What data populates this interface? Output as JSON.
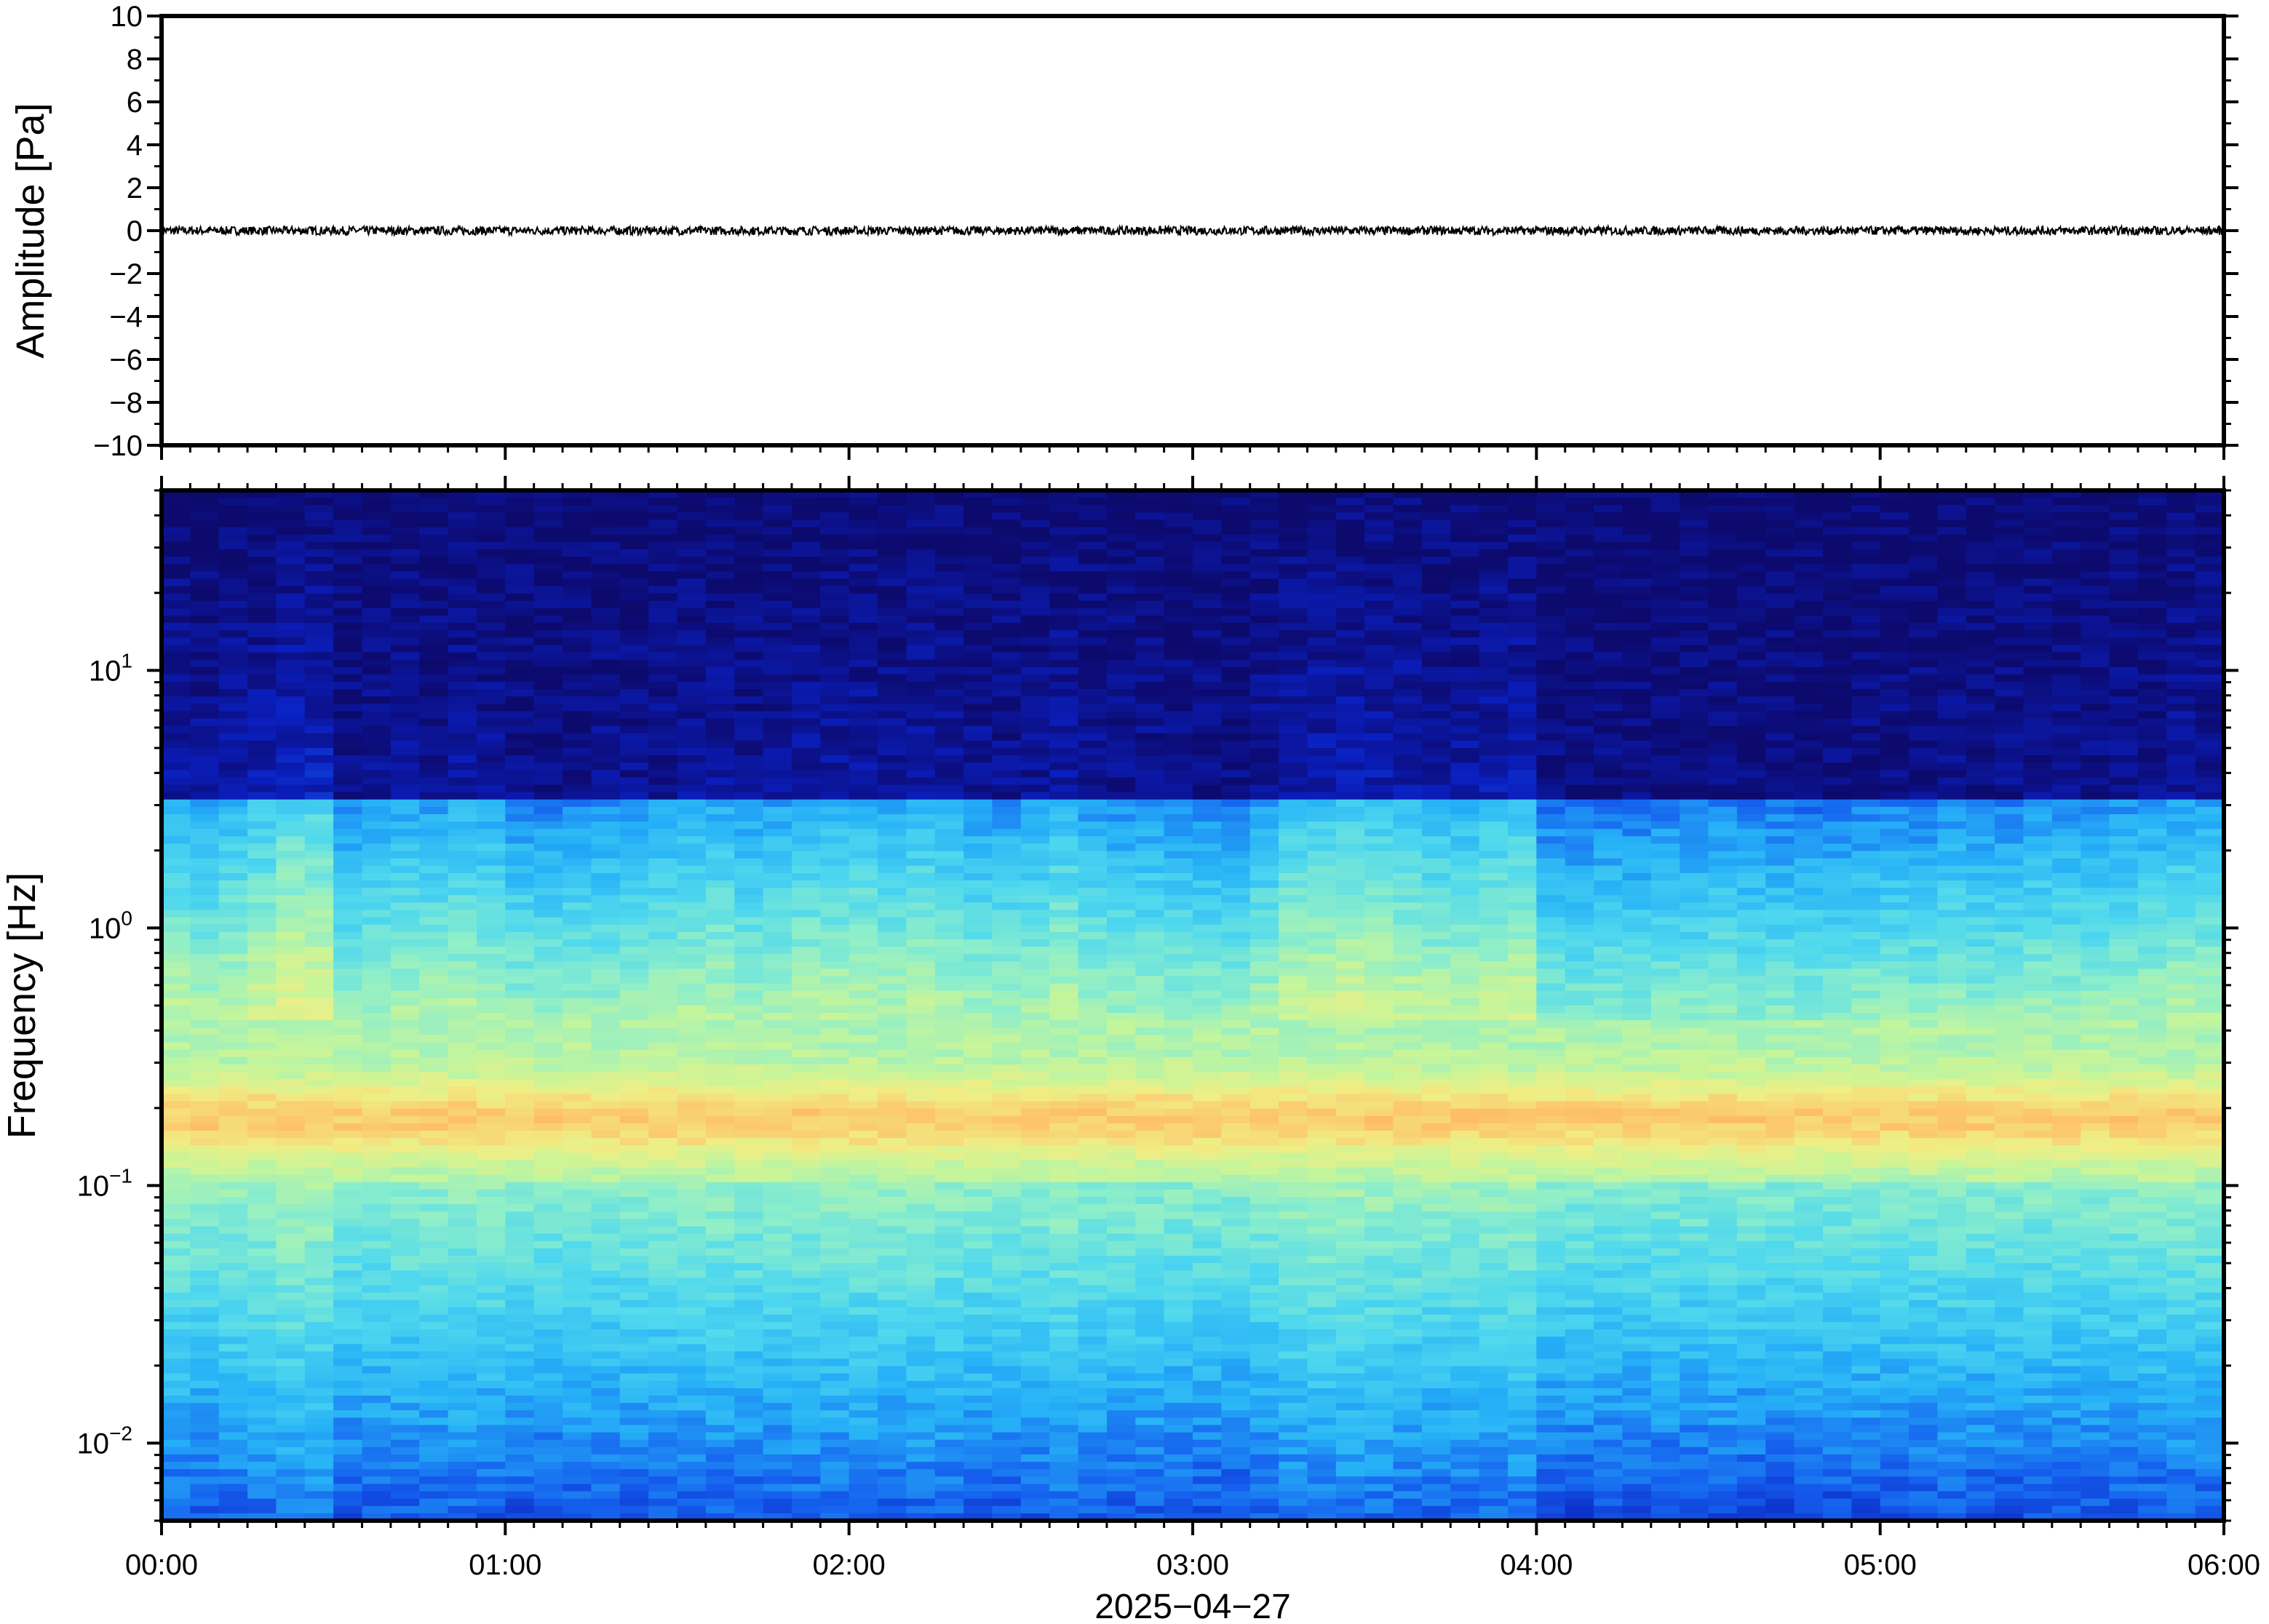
{
  "chart_data": [
    {
      "type": "line",
      "panel": "waveform",
      "xlabel": "",
      "ylabel": "Amplitude [Pa]",
      "ylim": [
        -10,
        10
      ],
      "yticks": [
        10,
        8,
        6,
        4,
        2,
        0,
        -2,
        -4,
        -6,
        -8,
        -10
      ],
      "ytick_labels": [
        "10",
        "8",
        "6",
        "4",
        "2",
        "0",
        "−2",
        "−4",
        "−6",
        "−8",
        "−10"
      ],
      "grid": false,
      "series": [
        {
          "color": "#000000",
          "description_values": "near-zero trace, amplitude approx ±0.2 Pa over 00:00–06:00",
          "baseline": 0,
          "peak_amplitude": 0.2
        }
      ]
    },
    {
      "type": "heatmap",
      "panel": "spectrogram",
      "xlabel": "2025−04−27",
      "ylabel": "Frequency [Hz]",
      "yscale": "log",
      "ylim": [
        0.005,
        50
      ],
      "ytick_labels": [
        {
          "value": 10,
          "base": "10",
          "exp": "1"
        },
        {
          "value": 1,
          "base": "10",
          "exp": "0"
        },
        {
          "value": 0.1,
          "base": "10",
          "exp": "−1"
        },
        {
          "value": 0.01,
          "base": "10",
          "exp": "−2"
        }
      ],
      "xlim": [
        "00:00",
        "06:00"
      ],
      "xtick_labels": [
        "00:00",
        "01:00",
        "02:00",
        "03:00",
        "04:00",
        "05:00",
        "06:00"
      ],
      "colormap": "jet",
      "colormap_stops": [
        "#0d0a6e",
        "#0a1fbf",
        "#1560ee",
        "#26b1f7",
        "#4fd8ee",
        "#8ceecb",
        "#c6f59a",
        "#f0ee84",
        "#fdc46d",
        "#fb9a52"
      ],
      "time_columns_per_hour": 12,
      "broadband_level_by_column": [
        0.5,
        0.42,
        0.52,
        0.62,
        0.78,
        0.76,
        0.3,
        0.34,
        0.4,
        0.4,
        0.46,
        0.42,
        0.28,
        0.26,
        0.3,
        0.3,
        0.34,
        0.36,
        0.42,
        0.46,
        0.36,
        0.4,
        0.46,
        0.48,
        0.5,
        0.44,
        0.5,
        0.44,
        0.36,
        0.34,
        0.4,
        0.5,
        0.36,
        0.3,
        0.32,
        0.28,
        0.28,
        0.26,
        0.4,
        0.6,
        0.62,
        0.68,
        0.62,
        0.56,
        0.5,
        0.5,
        0.58,
        0.62,
        0.18,
        0.16,
        0.18,
        0.18,
        0.22,
        0.2,
        0.24,
        0.2,
        0.18,
        0.18,
        0.2,
        0.24,
        0.26,
        0.24,
        0.3,
        0.24,
        0.26,
        0.3,
        0.3,
        0.3,
        0.34,
        0.36,
        0.42,
        0.4
      ],
      "dominant_band_hz": [
        0.15,
        0.22
      ],
      "grid": false
    }
  ]
}
